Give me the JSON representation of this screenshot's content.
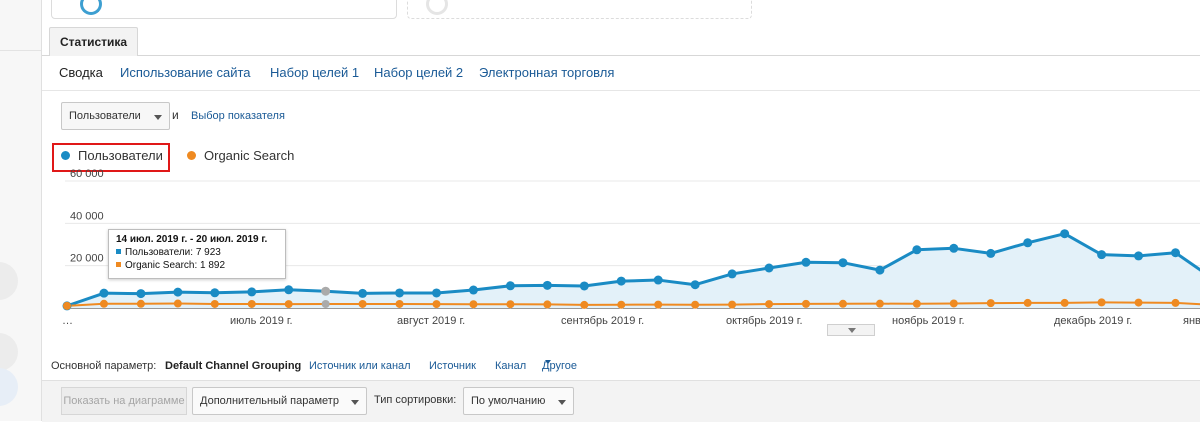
{
  "tab": {
    "label": "Статистика"
  },
  "subtabs": [
    "Сводка",
    "Использование сайта",
    "Набор целей 1",
    "Набор целей 2",
    "Электронная торговля"
  ],
  "metric_selector": {
    "value": "Пользователи",
    "conjunction": "и",
    "link": "Выбор показателя"
  },
  "legend": [
    {
      "label": "Пользователи",
      "color": "#1a8bc4",
      "highlighted": true
    },
    {
      "label": "Organic Search",
      "color": "#ef8a21"
    }
  ],
  "tooltip": {
    "title": "14 июл. 2019 г. - 20 июл. 2019 г.",
    "rows": [
      {
        "label": "Пользователи: 7 923",
        "color": "#1a8bc4"
      },
      {
        "label": "Organic Search: 1 892",
        "color": "#ef8a21"
      }
    ]
  },
  "chart_data": {
    "type": "line",
    "y_ticks": [
      "60 000",
      "40 000",
      "20 000"
    ],
    "ylim": [
      0,
      60000
    ],
    "x_labels": [
      "…",
      "июль 2019 г.",
      "август 2019 г.",
      "сентябрь 2019 г.",
      "октябрь 2019 г.",
      "ноябрь 2019 г.",
      "декабрь 2019 г.",
      "янв"
    ],
    "series": [
      {
        "name": "Пользователи",
        "color": "#1a8bc4",
        "values": [
          1000,
          7000,
          6800,
          7500,
          7200,
          7600,
          8600,
          7923,
          6900,
          7100,
          7100,
          8500,
          10500,
          10700,
          10400,
          12700,
          13200,
          11000,
          16100,
          18900,
          21600,
          21400,
          17900,
          27500,
          28200,
          25800,
          30800,
          35100,
          25200,
          24600,
          26100,
          14000
        ]
      },
      {
        "name": "Organic Search",
        "color": "#ef8a21",
        "values": [
          1000,
          2000,
          2000,
          2100,
          1900,
          1900,
          1850,
          1892,
          1900,
          1900,
          1850,
          1800,
          1800,
          1700,
          1450,
          1550,
          1600,
          1550,
          1600,
          1850,
          1950,
          2000,
          2050,
          2000,
          2150,
          2300,
          2400,
          2400,
          2650,
          2550,
          2400,
          1500
        ]
      }
    ]
  },
  "dimension_row": {
    "label": "Основной параметр:",
    "active": "Default Channel Grouping",
    "links": [
      "Источник или канал",
      "Источник",
      "Канал"
    ],
    "other": "Другое"
  },
  "bottom_bar": {
    "plot_button": "Показать на диаграмме",
    "secondary_dimension": "Дополнительный параметр",
    "sort_label": "Тип сортировки:",
    "sort_value": "По умолчанию"
  }
}
